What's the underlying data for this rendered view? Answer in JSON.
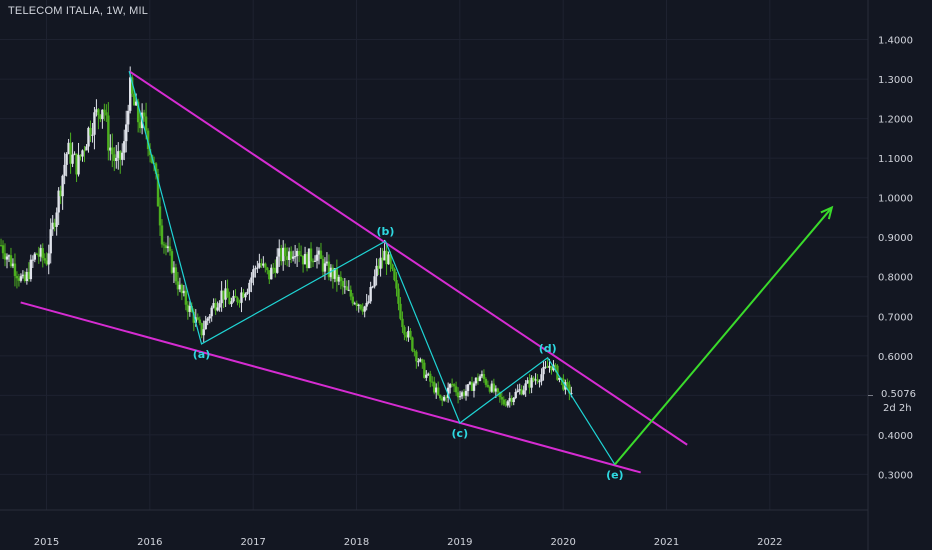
{
  "header": {
    "title": "TELECOM ITALIA, 1W, MIL"
  },
  "colors": {
    "background": "#131722",
    "grid": "#1e2230",
    "axis_text": "#d1d4dc",
    "up_candle": "#e0e3eb",
    "down_candle": "#4caf1f",
    "channel": "#d62cd2",
    "wave_path": "#1fd4d4",
    "wave_label": "#2ed8e0",
    "projection": "#3adb2b"
  },
  "price_badge": {
    "price": "0.5076",
    "countdown": "2d 2h"
  },
  "chart_data": {
    "type": "candlestick",
    "title": "TELECOM ITALIA, 1W, MIL",
    "x_ticks": [
      "2015",
      "2016",
      "2017",
      "2018",
      "2019",
      "2020",
      "2021",
      "2022"
    ],
    "y_ticks": [
      "0.3000",
      "0.4000",
      "0.5000",
      "0.6000",
      "0.7000",
      "0.8000",
      "0.9000",
      "1.0000",
      "1.1000",
      "1.2000",
      "1.3000",
      "1.4000"
    ],
    "xlim": [
      2014.55,
      2022.95
    ],
    "ylim": [
      0.21,
      1.5
    ],
    "grid": true,
    "price_trend": [
      [
        2014.56,
        0.88
      ],
      [
        2014.7,
        0.82
      ],
      [
        2014.78,
        0.78
      ],
      [
        2014.9,
        0.86
      ],
      [
        2015.0,
        0.84
      ],
      [
        2015.1,
        0.98
      ],
      [
        2015.2,
        1.12
      ],
      [
        2015.3,
        1.08
      ],
      [
        2015.42,
        1.18
      ],
      [
        2015.55,
        1.24
      ],
      [
        2015.6,
        1.14
      ],
      [
        2015.68,
        1.08
      ],
      [
        2015.75,
        1.12
      ],
      [
        2015.8,
        1.28
      ],
      [
        2015.88,
        1.2
      ],
      [
        2015.96,
        1.18
      ],
      [
        2016.05,
        1.06
      ],
      [
        2016.12,
        0.9
      ],
      [
        2016.2,
        0.84
      ],
      [
        2016.3,
        0.76
      ],
      [
        2016.42,
        0.7
      ],
      [
        2016.5,
        0.66
      ],
      [
        2016.6,
        0.72
      ],
      [
        2016.7,
        0.76
      ],
      [
        2016.8,
        0.73
      ],
      [
        2016.95,
        0.78
      ],
      [
        2017.05,
        0.84
      ],
      [
        2017.15,
        0.8
      ],
      [
        2017.25,
        0.85
      ],
      [
        2017.35,
        0.86
      ],
      [
        2017.42,
        0.88
      ],
      [
        2017.5,
        0.84
      ],
      [
        2017.6,
        0.86
      ],
      [
        2017.7,
        0.82
      ],
      [
        2017.8,
        0.8
      ],
      [
        2017.9,
        0.76
      ],
      [
        2018.0,
        0.74
      ],
      [
        2018.1,
        0.72
      ],
      [
        2018.2,
        0.82
      ],
      [
        2018.28,
        0.86
      ],
      [
        2018.35,
        0.8
      ],
      [
        2018.45,
        0.68
      ],
      [
        2018.55,
        0.62
      ],
      [
        2018.65,
        0.56
      ],
      [
        2018.75,
        0.52
      ],
      [
        2018.82,
        0.48
      ],
      [
        2018.92,
        0.53
      ],
      [
        2019.0,
        0.5
      ],
      [
        2019.1,
        0.52
      ],
      [
        2019.2,
        0.55
      ],
      [
        2019.3,
        0.52
      ],
      [
        2019.42,
        0.48
      ],
      [
        2019.52,
        0.5
      ],
      [
        2019.62,
        0.52
      ],
      [
        2019.72,
        0.54
      ],
      [
        2019.82,
        0.56
      ],
      [
        2019.88,
        0.58
      ],
      [
        2019.95,
        0.55
      ],
      [
        2020.02,
        0.52
      ],
      [
        2020.08,
        0.5076
      ]
    ],
    "annotations": {
      "channel_upper": [
        [
          2015.8,
          1.32
        ],
        [
          2021.2,
          0.375
        ]
      ],
      "channel_lower": [
        [
          2014.75,
          0.735
        ],
        [
          2020.75,
          0.305
        ]
      ],
      "wave_path": [
        [
          2015.8,
          1.32
        ],
        [
          2016.5,
          0.63
        ],
        [
          2018.28,
          0.89
        ],
        [
          2019.0,
          0.43
        ],
        [
          2019.85,
          0.595
        ],
        [
          2020.5,
          0.325
        ]
      ],
      "wave_labels": [
        {
          "text": "(a)",
          "x": 2016.5,
          "y": 0.63,
          "pos": "below"
        },
        {
          "text": "(b)",
          "x": 2018.28,
          "y": 0.89,
          "pos": "above"
        },
        {
          "text": "(c)",
          "x": 2019.0,
          "y": 0.43,
          "pos": "below"
        },
        {
          "text": "(d)",
          "x": 2019.85,
          "y": 0.595,
          "pos": "above"
        },
        {
          "text": "(e)",
          "x": 2020.5,
          "y": 0.325,
          "pos": "below"
        }
      ],
      "projection_arrow": [
        [
          2020.5,
          0.325
        ],
        [
          2022.6,
          0.975
        ]
      ]
    }
  }
}
